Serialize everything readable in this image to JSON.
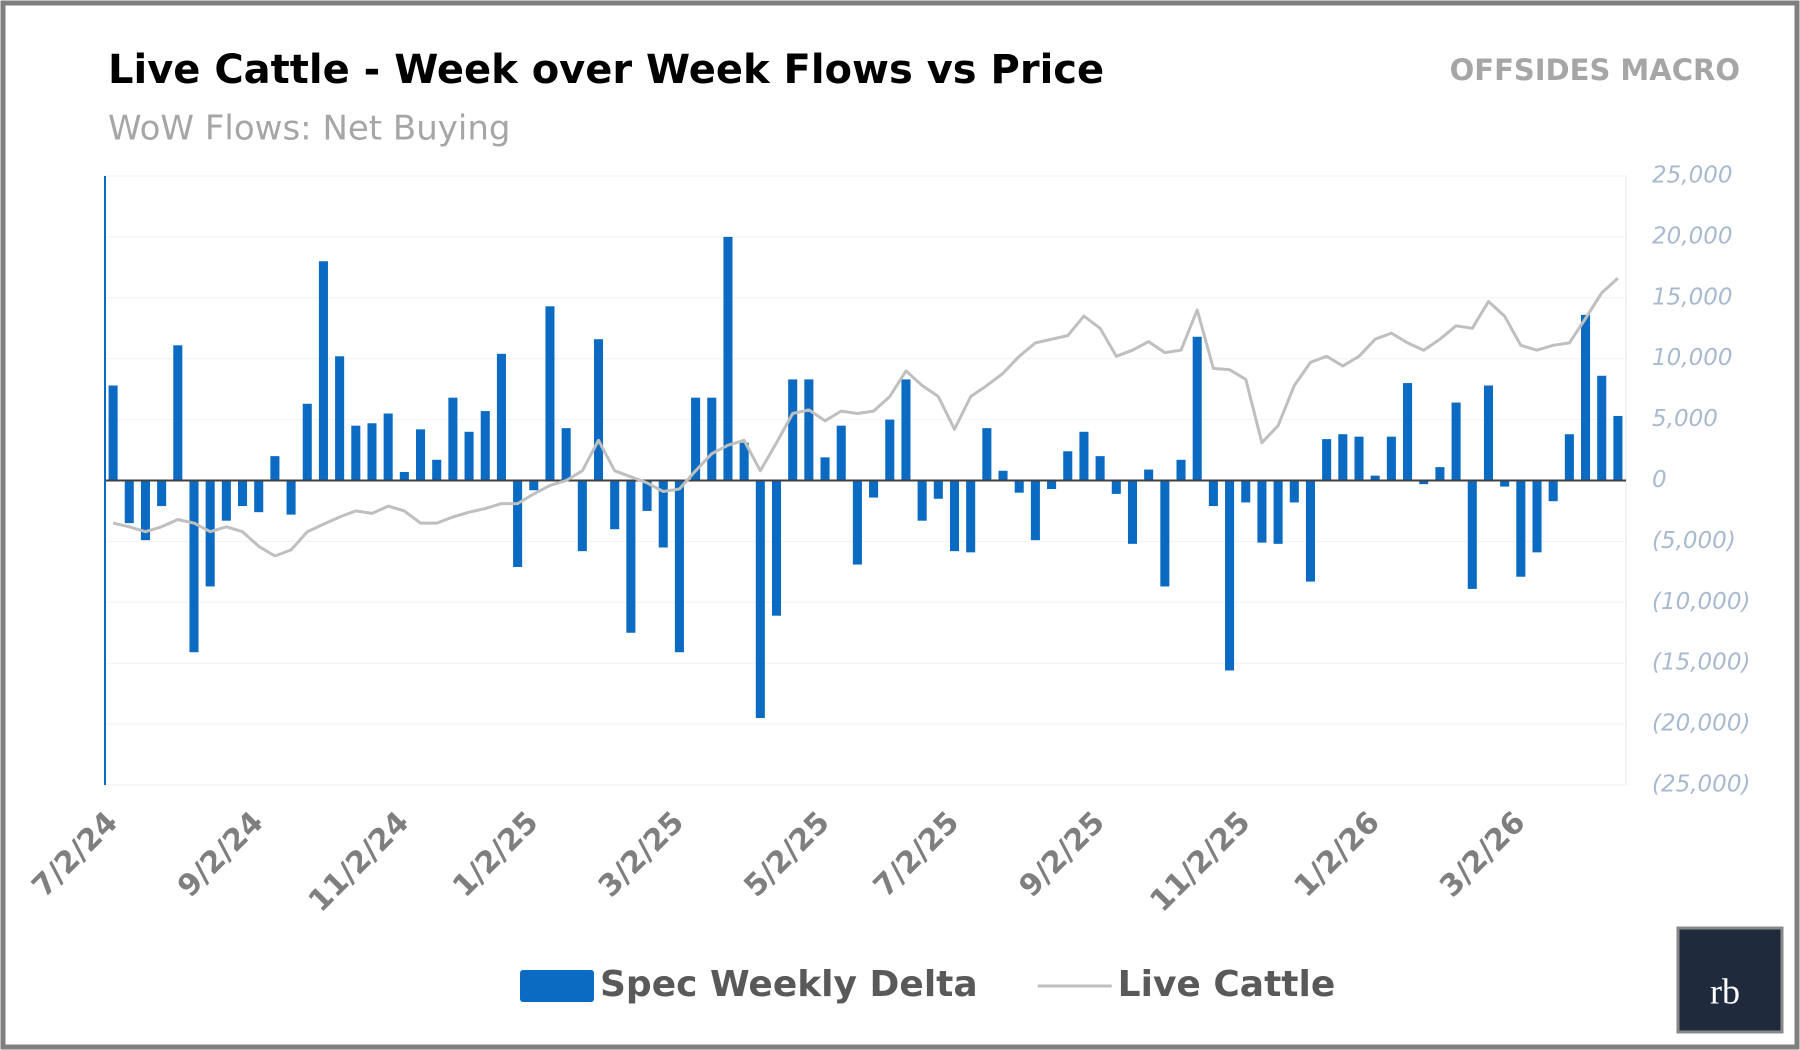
{
  "brand": "OFFSIDES MACRO",
  "logo": "rb",
  "chart_data": {
    "type": "bar",
    "title": "Live Cattle - Week over Week Flows vs Price",
    "subtitle": "WoW Flows: Net Buying",
    "categories": [
      "7/2/24",
      null,
      null,
      null,
      null,
      null,
      null,
      null,
      null,
      "9/2/24",
      null,
      null,
      null,
      null,
      null,
      null,
      null,
      null,
      "11/2/24",
      null,
      null,
      null,
      null,
      null,
      null,
      null,
      "1/2/25",
      null,
      null,
      null,
      null,
      null,
      null,
      null,
      null,
      "3/2/25",
      null,
      null,
      null,
      null,
      null,
      null,
      null,
      null,
      "5/2/25",
      null,
      null,
      null,
      null,
      null,
      null,
      null,
      "7/2/25",
      null,
      null,
      null,
      null,
      null,
      null,
      null,
      null,
      "9/2/25",
      null,
      null,
      null,
      null,
      null,
      null,
      null,
      null,
      "11/2/25",
      null,
      null,
      null,
      null,
      null,
      null,
      null,
      "1/2/26",
      null,
      null,
      null,
      null,
      null,
      null,
      null,
      null,
      "3/2/26",
      null,
      null,
      null,
      null,
      null,
      null
    ],
    "series": [
      {
        "name": "Spec Weekly Delta",
        "type": "bar",
        "color": "#0b6bc2",
        "values": [
          7800,
          -3500,
          -4900,
          -2100,
          11100,
          -14100,
          -8700,
          -3300,
          -2100,
          -2600,
          2000,
          -2800,
          6300,
          18000,
          10200,
          4500,
          4700,
          5500,
          700,
          4200,
          1700,
          6800,
          4000,
          5700,
          10400,
          -7100,
          -800,
          14300,
          4300,
          -5800,
          11600,
          -4000,
          -12500,
          -2500,
          -5500,
          -14100,
          6800,
          6800,
          20000,
          3100,
          -19500,
          -11100,
          8300,
          8300,
          1900,
          4500,
          -6900,
          -1400,
          5000,
          8300,
          -3300,
          -1500,
          -5800,
          -5900,
          4300,
          800,
          -1000,
          -4900,
          -700,
          2400,
          4000,
          2000,
          -1100,
          -5200,
          900,
          -8700,
          1700,
          11800,
          -2100,
          -15600,
          -1800,
          -5100,
          -5200,
          -1800,
          -8300,
          3400,
          3800,
          3600,
          400,
          3600,
          8000,
          -300,
          1100,
          6400,
          -8900,
          7800,
          -500,
          -7900,
          -5900,
          -1700,
          3800,
          13600,
          8600,
          5300
        ]
      },
      {
        "name": "Live Cattle",
        "type": "line",
        "color": "#bfbfbf",
        "values": [
          -3500,
          -3800,
          -4200,
          -3800,
          -3200,
          -3500,
          -4200,
          -3800,
          -4200,
          -5400,
          -6200,
          -5700,
          -4200,
          -3600,
          -3000,
          -2500,
          -2700,
          -2100,
          -2500,
          -3500,
          -3500,
          -3000,
          -2600,
          -2300,
          -1900,
          -1900,
          -1100,
          -400,
          0,
          800,
          3300,
          800,
          300,
          -200,
          -900,
          -700,
          800,
          2200,
          2900,
          3300,
          800,
          3100,
          5500,
          5800,
          4900,
          5700,
          5500,
          5700,
          6900,
          9000,
          7800,
          6900,
          4200,
          6900,
          7800,
          8800,
          10200,
          11300,
          11600,
          11900,
          13500,
          12500,
          10200,
          10700,
          11400,
          10500,
          10700,
          14000,
          9200,
          9100,
          8300,
          3100,
          4500,
          7800,
          9700,
          10200,
          9400,
          10200,
          11600,
          12100,
          11300,
          10700,
          11600,
          12700,
          12500,
          14700,
          13500,
          11100,
          10700,
          11100,
          11300,
          13300,
          15400,
          16600
        ]
      }
    ],
    "ylim": [
      -25000,
      25000
    ],
    "yticks": [
      {
        "value": -25000,
        "label": "(25,000)"
      },
      {
        "value": -20000,
        "label": "(20,000)"
      },
      {
        "value": -15000,
        "label": "(15,000)"
      },
      {
        "value": -10000,
        "label": "(10,000)"
      },
      {
        "value": -5000,
        "label": "(5,000)"
      },
      0,
      {
        "value": 5000,
        "label": "5,000"
      },
      {
        "value": 10000,
        "label": "10,000"
      },
      {
        "value": 15000,
        "label": "15,000"
      },
      {
        "value": 20000,
        "label": "20,000"
      },
      {
        "value": 25000,
        "label": "25,000"
      }
    ],
    "grid": true
  }
}
